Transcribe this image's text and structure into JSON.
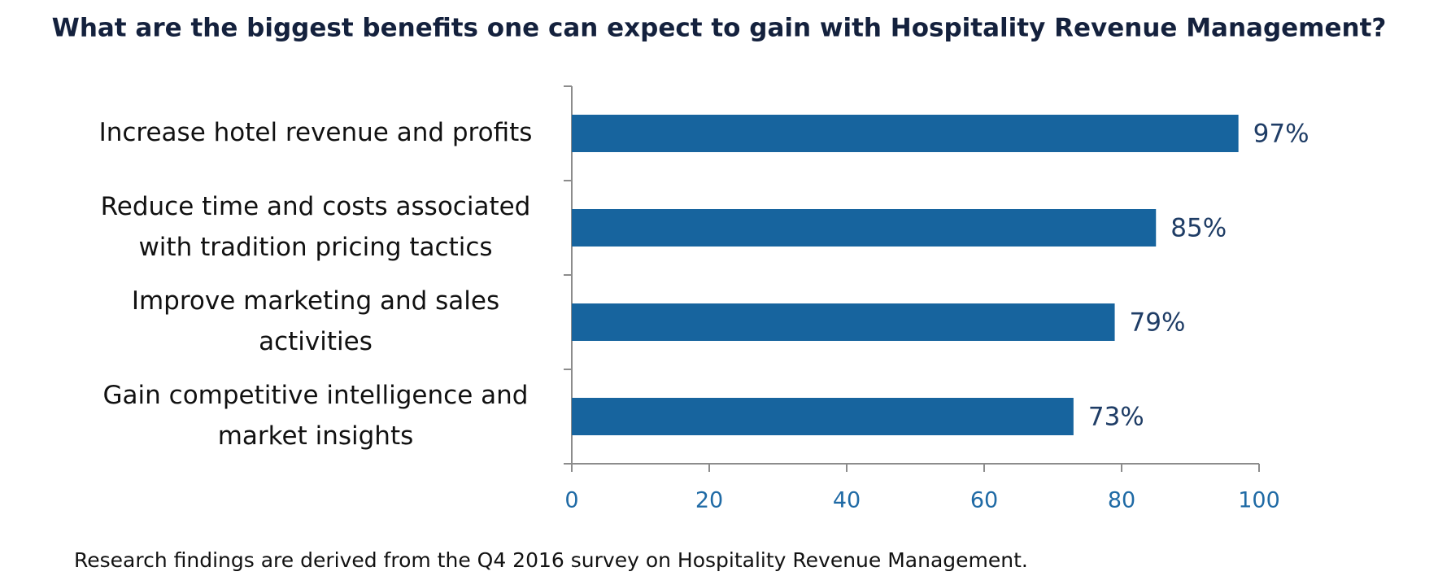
{
  "chart_data": {
    "type": "bar",
    "orientation": "horizontal",
    "title": "What are the biggest benefits one can expect to gain with Hospitality Revenue Management?",
    "categories": [
      "Increase hotel revenue and profits",
      "Reduce time and costs associated with tradition pricing tactics",
      "Improve marketing and sales activities",
      "Gain competitive intelligence and market insights"
    ],
    "values": [
      97,
      85,
      79,
      73
    ],
    "value_labels": [
      "97%",
      "85%",
      "79%",
      "73%"
    ],
    "color": "#17649e",
    "xlim": [
      0,
      100
    ],
    "xticks": [
      0,
      20,
      40,
      60,
      80,
      100
    ],
    "footnote": "Research findings are derived from the Q4 2016 survey on Hospitality Revenue Management."
  }
}
